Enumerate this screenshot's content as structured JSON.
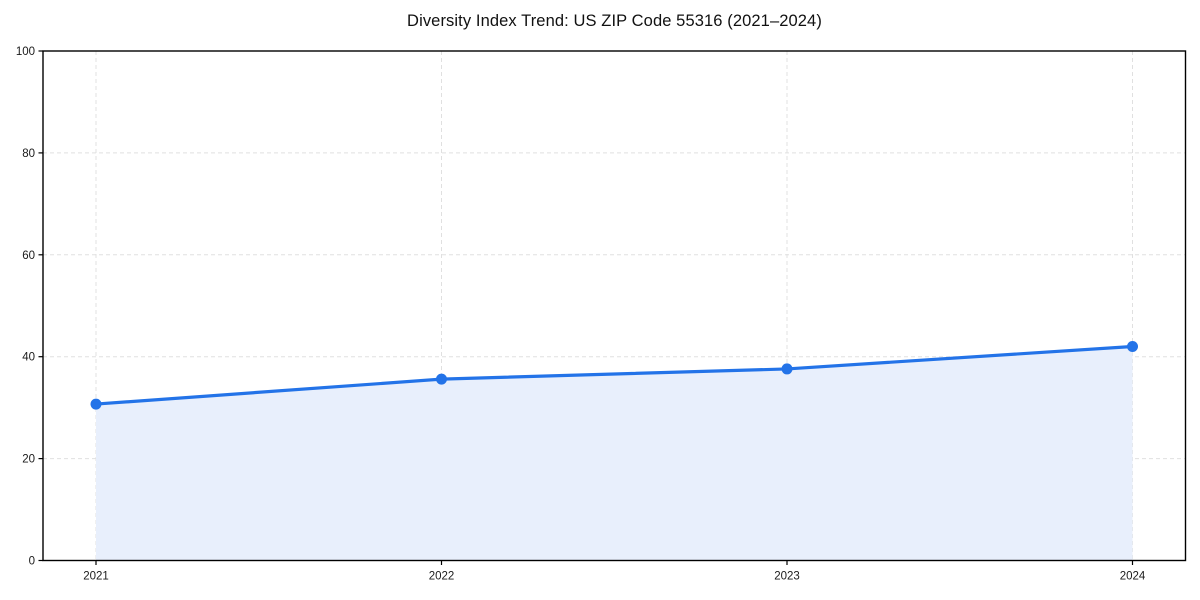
{
  "chart_data": {
    "type": "line",
    "title": "Diversity Index Trend: US ZIP Code 55316 (2021–2024)",
    "x_tick_labels": [
      "2021",
      "2022",
      "2023",
      "2024"
    ],
    "series": [
      {
        "name": "Diversity Index",
        "values": [
          30.7,
          35.6,
          37.6,
          42.0
        ]
      }
    ],
    "xlabel": "",
    "ylabel": "",
    "ylim": [
      0,
      100
    ],
    "yticks": [
      0,
      20,
      40,
      60,
      80,
      100
    ],
    "grid": true,
    "grid_style": "dashed",
    "legend": false,
    "marker": "circle",
    "colors": {
      "line": "#2373e8",
      "marker": "#2373e8",
      "area_fill": "#e8effc",
      "grid": "#e0e0e0",
      "spine": "#000000",
      "background": "#ffffff"
    }
  }
}
